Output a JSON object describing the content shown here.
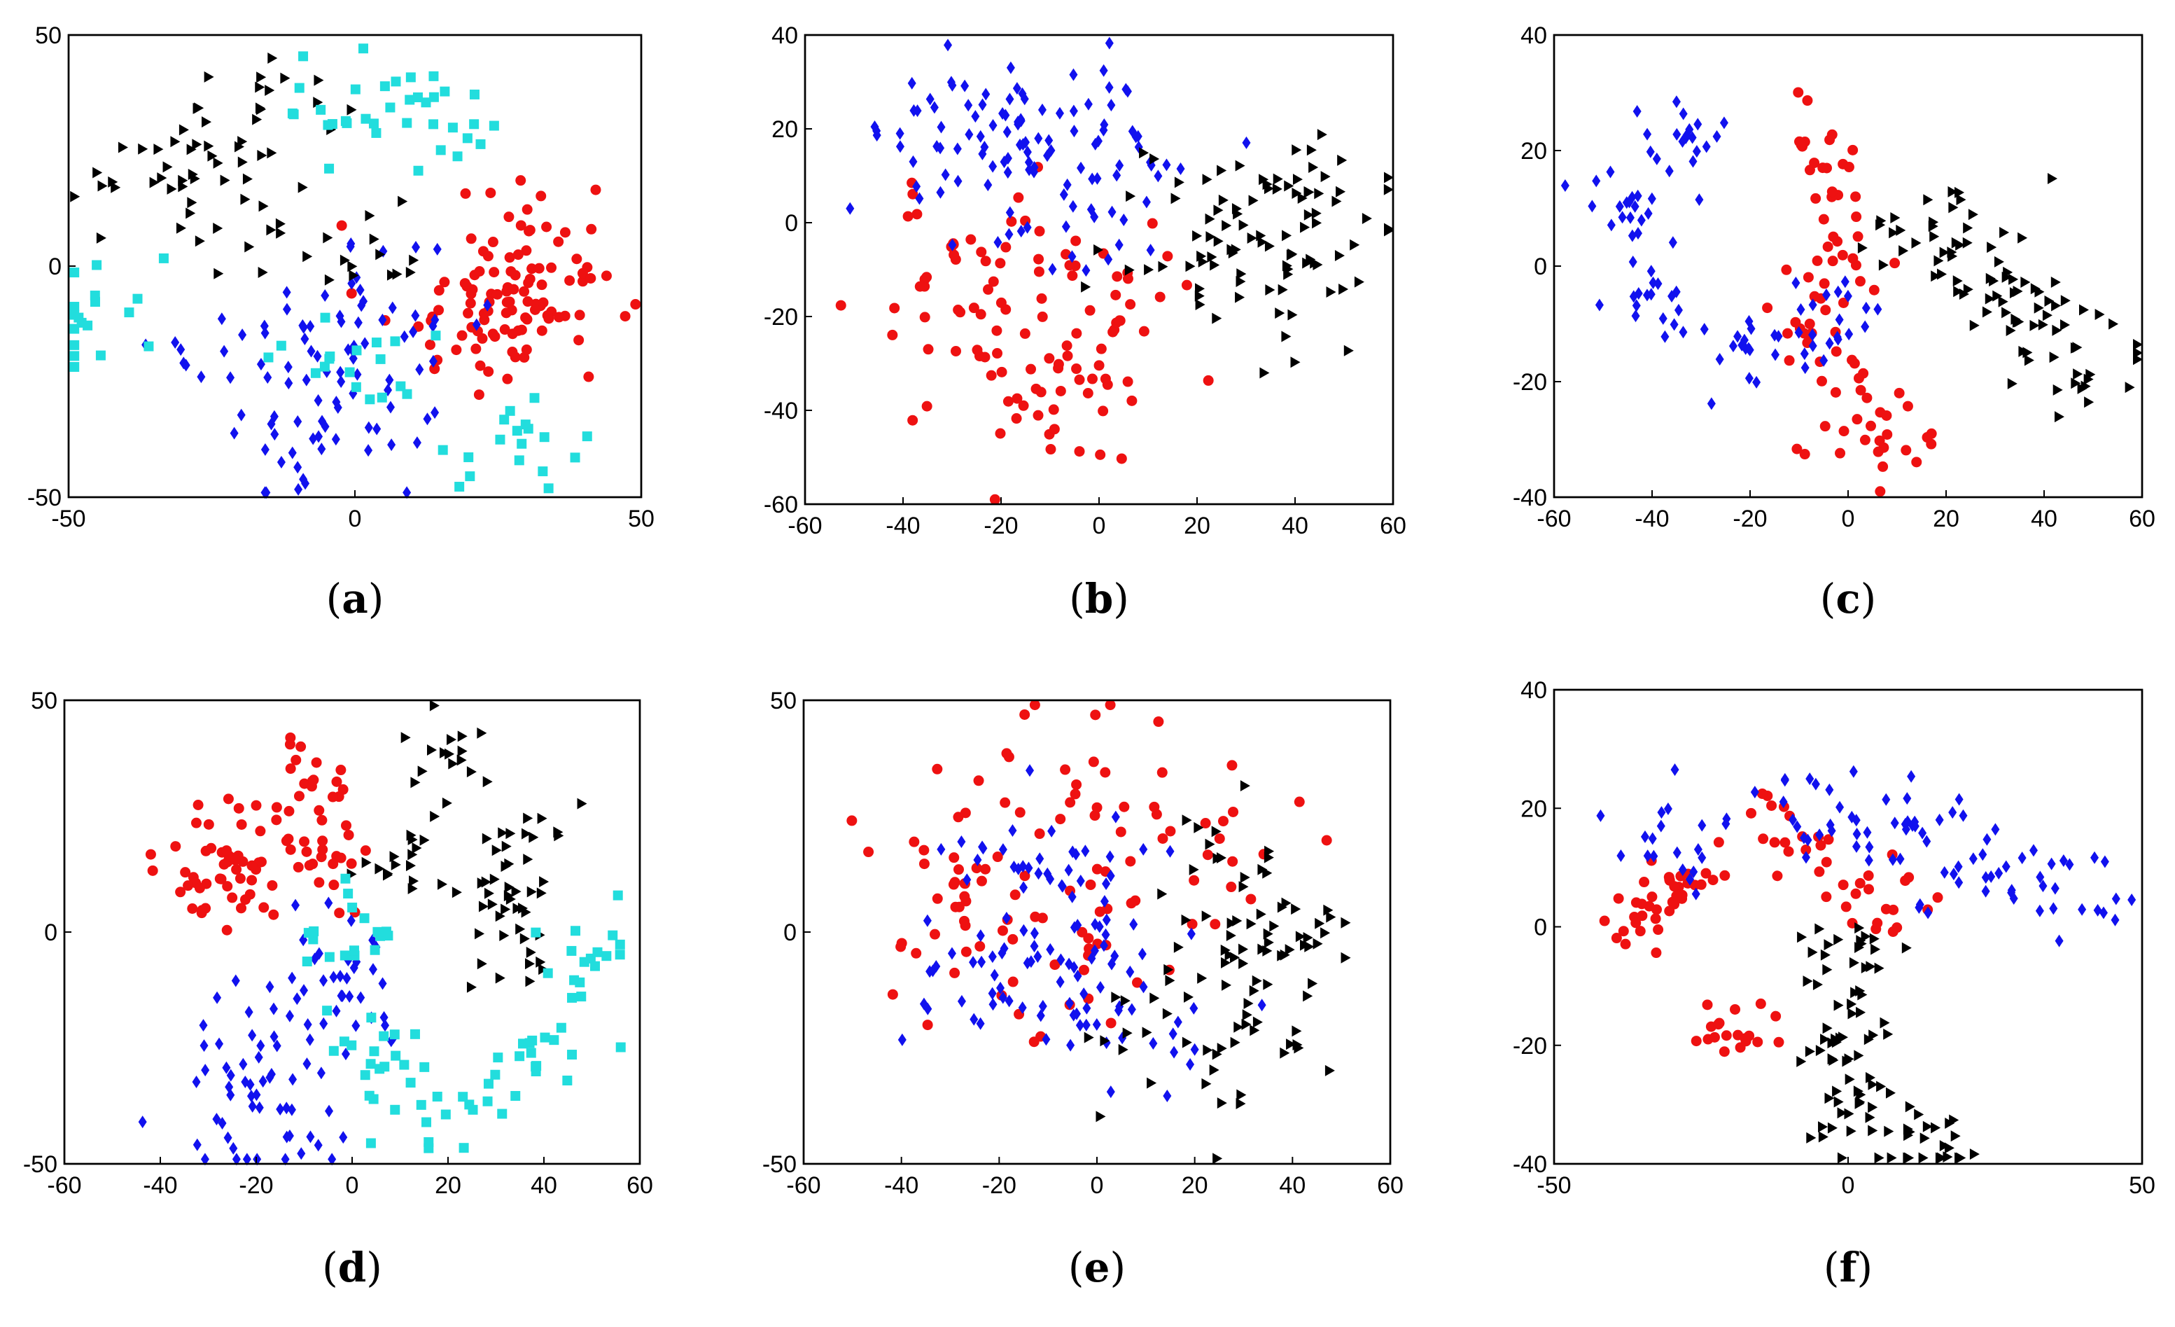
{
  "figure": {
    "title": "",
    "panel_count": 6
  },
  "colors": {
    "red": "#ee1111",
    "blue": "#1111ee",
    "black": "#000000",
    "cyan": "#22dddd"
  },
  "chart_data": [
    {
      "id": "a",
      "type": "scatter",
      "caption": "a",
      "xlim": [
        -50,
        50
      ],
      "ylim": [
        -50,
        50
      ],
      "xticks": [
        -50,
        0,
        50
      ],
      "yticks": [
        -50,
        0,
        50
      ],
      "series": [
        {
          "name": "class-red",
          "color": "red",
          "marker": "circle",
          "centers": [
            [
              25,
              -5
            ],
            [
              30,
              5
            ],
            [
              35,
              -10
            ],
            [
              20,
              -15
            ]
          ],
          "spread": [
            8,
            8
          ],
          "count": 110
        },
        {
          "name": "class-blue",
          "color": "blue",
          "marker": "diamond",
          "centers": [
            [
              -15,
              -20
            ],
            [
              0,
              -10
            ],
            [
              -5,
              -35
            ],
            [
              5,
              -25
            ]
          ],
          "spread": [
            10,
            10
          ],
          "count": 95
        },
        {
          "name": "class-black",
          "color": "black",
          "marker": "triangle",
          "centers": [
            [
              -35,
              20
            ],
            [
              -20,
              10
            ],
            [
              -30,
              25
            ],
            [
              0,
              0
            ],
            [
              -15,
              35
            ]
          ],
          "spread": [
            6,
            6
          ],
          "count": 75
        },
        {
          "name": "class-cyan",
          "color": "cyan",
          "marker": "square",
          "centers": [
            [
              0,
              35
            ],
            [
              15,
              30
            ],
            [
              -45,
              -10
            ],
            [
              28,
              -37
            ],
            [
              0,
              -20
            ]
          ],
          "spread": [
            6,
            6
          ],
          "count": 90
        }
      ]
    },
    {
      "id": "b",
      "type": "scatter",
      "caption": "b",
      "xlim": [
        -60,
        60
      ],
      "ylim": [
        -60,
        40
      ],
      "xticks": [
        -60,
        -40,
        -20,
        0,
        20,
        40,
        60
      ],
      "yticks": [
        -60,
        -40,
        -20,
        0,
        20,
        40
      ],
      "series": [
        {
          "name": "class-red",
          "color": "red",
          "marker": "circle",
          "centers": [
            [
              -15,
              -20
            ],
            [
              -30,
              -10
            ],
            [
              0,
              -25
            ],
            [
              -10,
              -35
            ]
          ],
          "spread": [
            12,
            10
          ],
          "count": 110
        },
        {
          "name": "class-blue",
          "color": "blue",
          "marker": "diamond",
          "centers": [
            [
              -20,
              15
            ],
            [
              -5,
              20
            ],
            [
              -30,
              20
            ],
            [
              0,
              5
            ]
          ],
          "spread": [
            10,
            9
          ],
          "count": 115
        },
        {
          "name": "class-black",
          "color": "black",
          "marker": "triangle",
          "centers": [
            [
              30,
              0
            ],
            [
              40,
              -10
            ],
            [
              20,
              -5
            ],
            [
              45,
              5
            ]
          ],
          "spread": [
            10,
            9
          ],
          "count": 95
        }
      ]
    },
    {
      "id": "c",
      "type": "scatter",
      "caption": "c",
      "xlim": [
        -60,
        60
      ],
      "ylim": [
        -40,
        40
      ],
      "xticks": [
        -60,
        -40,
        -20,
        0,
        20,
        40,
        60
      ],
      "yticks": [
        -40,
        -20,
        0,
        20,
        40
      ],
      "series": [
        {
          "name": "class-red",
          "color": "red",
          "marker": "circle",
          "centers": [
            [
              -5,
              20
            ],
            [
              0,
              5
            ],
            [
              10,
              -30
            ],
            [
              0,
              -22
            ],
            [
              -10,
              -10
            ]
          ],
          "spread": [
            5,
            5
          ],
          "count": 85
        },
        {
          "name": "class-blue",
          "color": "blue",
          "marker": "diamond",
          "centers": [
            [
              -35,
              22
            ],
            [
              -40,
              -5
            ],
            [
              -20,
              -15
            ],
            [
              -45,
              10
            ],
            [
              -5,
              -10
            ]
          ],
          "spread": [
            5,
            4
          ],
          "count": 95
        },
        {
          "name": "class-black",
          "color": "black",
          "marker": "triangle",
          "centers": [
            [
              20,
              8
            ],
            [
              35,
              -8
            ],
            [
              48,
              -15
            ],
            [
              30,
              -2
            ]
          ],
          "spread": [
            7,
            5
          ],
          "count": 90
        }
      ]
    },
    {
      "id": "d",
      "type": "scatter",
      "caption": "d",
      "xlim": [
        -60,
        60
      ],
      "ylim": [
        -50,
        50
      ],
      "xticks": [
        -60,
        -40,
        -20,
        0,
        20,
        40,
        60
      ],
      "yticks": [
        -50,
        0,
        50
      ],
      "series": [
        {
          "name": "class-red",
          "color": "red",
          "marker": "circle",
          "centers": [
            [
              -25,
              15
            ],
            [
              -10,
              30
            ],
            [
              -30,
              10
            ],
            [
              -5,
              15
            ]
          ],
          "spread": [
            6,
            6
          ],
          "count": 95
        },
        {
          "name": "class-blue",
          "color": "blue",
          "marker": "diamond",
          "centers": [
            [
              -5,
              -5
            ],
            [
              -20,
              -25
            ],
            [
              -25,
              -40
            ],
            [
              -10,
              -40
            ],
            [
              0,
              -15
            ]
          ],
          "spread": [
            7,
            7
          ],
          "count": 90
        },
        {
          "name": "class-black",
          "color": "black",
          "marker": "triangle",
          "centers": [
            [
              20,
              38
            ],
            [
              38,
              20
            ],
            [
              30,
              10
            ],
            [
              35,
              0
            ],
            [
              10,
              15
            ]
          ],
          "spread": [
            5,
            5
          ],
          "count": 80
        },
        {
          "name": "class-cyan",
          "color": "cyan",
          "marker": "square",
          "centers": [
            [
              0,
              0
            ],
            [
              5,
              -25
            ],
            [
              20,
              -35
            ],
            [
              40,
              -27
            ],
            [
              50,
              -5
            ]
          ],
          "spread": [
            5,
            5
          ],
          "count": 85
        }
      ]
    },
    {
      "id": "e",
      "type": "scatter",
      "caption": "e",
      "xlim": [
        -60,
        60
      ],
      "ylim": [
        -50,
        50
      ],
      "xticks": [
        -60,
        -40,
        -20,
        0,
        20,
        40,
        60
      ],
      "yticks": [
        -50,
        0,
        50
      ],
      "series": [
        {
          "name": "class-red",
          "color": "red",
          "marker": "circle",
          "centers": [
            [
              -20,
              10
            ],
            [
              0,
              25
            ],
            [
              -10,
              -5
            ],
            [
              20,
              20
            ],
            [
              -35,
              5
            ]
          ],
          "spread": [
            12,
            12
          ],
          "count": 110
        },
        {
          "name": "class-blue",
          "color": "blue",
          "marker": "diamond",
          "centers": [
            [
              -20,
              -10
            ],
            [
              -5,
              0
            ],
            [
              5,
              -15
            ],
            [
              -10,
              15
            ]
          ],
          "spread": [
            10,
            9
          ],
          "count": 115
        },
        {
          "name": "class-black",
          "color": "black",
          "marker": "triangle",
          "centers": [
            [
              30,
              -10
            ],
            [
              35,
              -25
            ],
            [
              25,
              10
            ],
            [
              40,
              0
            ],
            [
              15,
              -20
            ]
          ],
          "spread": [
            9,
            9
          ],
          "count": 95
        }
      ]
    },
    {
      "id": "f",
      "type": "scatter",
      "caption": "f",
      "xlim": [
        -50,
        50
      ],
      "ylim": [
        -40,
        40
      ],
      "xticks": [
        -50,
        0,
        50
      ],
      "yticks": [
        -40,
        -20,
        0,
        20,
        40
      ],
      "series": [
        {
          "name": "class-red",
          "color": "red",
          "marker": "circle",
          "centers": [
            [
              -35,
              3
            ],
            [
              -28,
              7
            ],
            [
              -10,
              15
            ],
            [
              -20,
              -18
            ],
            [
              5,
              5
            ]
          ],
          "spread": [
            4,
            3
          ],
          "count": 95
        },
        {
          "name": "class-blue",
          "color": "blue",
          "marker": "diamond",
          "centers": [
            [
              35,
              7
            ],
            [
              10,
              20
            ],
            [
              20,
              10
            ],
            [
              -30,
              15
            ],
            [
              -5,
              18
            ]
          ],
          "spread": [
            6,
            4
          ],
          "count": 100
        },
        {
          "name": "class-black",
          "color": "black",
          "marker": "triangle",
          "centers": [
            [
              0,
              -5
            ],
            [
              0,
              -20
            ],
            [
              0,
              -32
            ],
            [
              15,
              -37
            ]
          ],
          "spread": [
            4,
            5
          ],
          "count": 95
        }
      ]
    }
  ]
}
